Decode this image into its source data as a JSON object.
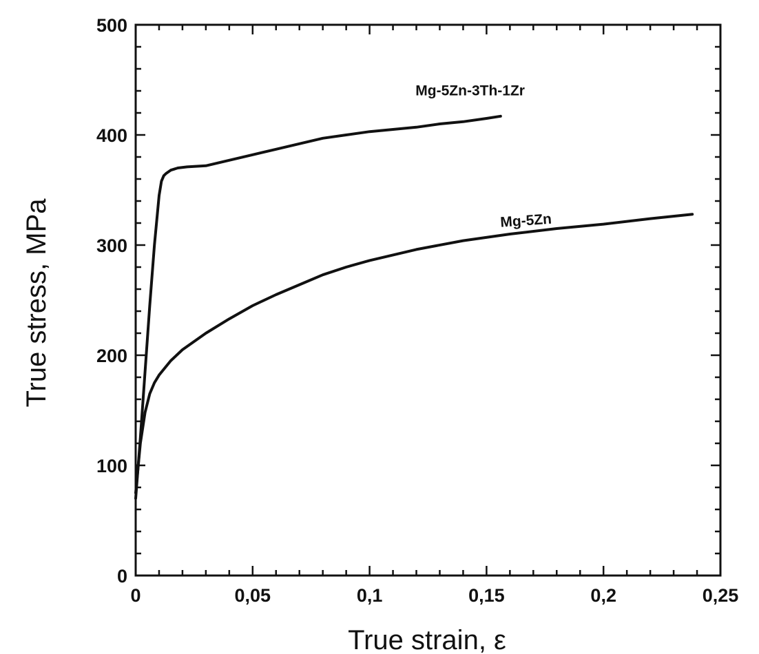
{
  "chart_data": {
    "type": "line",
    "title": "",
    "xlabel": "True strain, ε",
    "ylabel": "True stress, MPa",
    "xlim": [
      0,
      0.25
    ],
    "ylim": [
      0,
      500
    ],
    "x_ticks": [
      0,
      0.05,
      0.1,
      0.15,
      0.2,
      0.25
    ],
    "x_tick_labels": [
      "0",
      "0,05",
      "0,1",
      "0,15",
      "0,2",
      "0,25"
    ],
    "y_ticks": [
      0,
      100,
      200,
      300,
      400,
      500
    ],
    "y_tick_labels": [
      "0",
      "100",
      "200",
      "300",
      "400",
      "500"
    ],
    "grid": false,
    "legend": "none (direct labels on curves)",
    "series": [
      {
        "name": "Mg-5Zn-3Th-1Zr",
        "x": [
          0,
          0.002,
          0.004,
          0.006,
          0.008,
          0.01,
          0.011,
          0.012,
          0.013,
          0.015,
          0.018,
          0.022,
          0.03,
          0.04,
          0.05,
          0.06,
          0.07,
          0.08,
          0.09,
          0.1,
          0.11,
          0.12,
          0.13,
          0.14,
          0.15,
          0.156
        ],
        "y": [
          70,
          125,
          185,
          245,
          300,
          345,
          358,
          363,
          365,
          368,
          370,
          371,
          372,
          377,
          382,
          387,
          392,
          397,
          400,
          403,
          405,
          407,
          410,
          412,
          415,
          417
        ]
      },
      {
        "name": "Mg-5Zn",
        "x": [
          0,
          0.002,
          0.004,
          0.006,
          0.008,
          0.01,
          0.015,
          0.02,
          0.03,
          0.04,
          0.05,
          0.06,
          0.07,
          0.08,
          0.09,
          0.1,
          0.12,
          0.14,
          0.16,
          0.18,
          0.2,
          0.22,
          0.238
        ],
        "y": [
          75,
          120,
          148,
          165,
          175,
          182,
          195,
          205,
          220,
          233,
          245,
          255,
          264,
          273,
          280,
          286,
          296,
          304,
          310,
          315,
          319,
          324,
          328
        ]
      }
    ]
  }
}
